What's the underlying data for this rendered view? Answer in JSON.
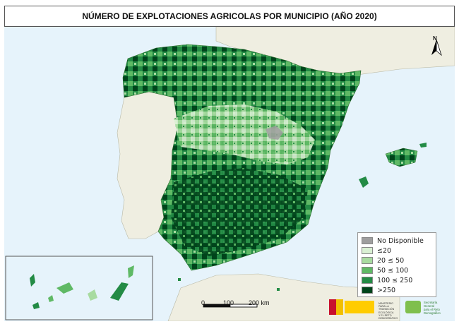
{
  "title": "NÚMERO DE EXPLOTACIONES AGRICOLAS POR MUNICIPIO (AÑO 2020)",
  "legend": {
    "items": [
      {
        "label": "No Disponible",
        "color": "#9e9e9e"
      },
      {
        "label": "≤20",
        "color": "#d9f0d3"
      },
      {
        "label": "20 ≤ 50",
        "color": "#a8dba0"
      },
      {
        "label": "50 ≤ 100",
        "color": "#5fb965"
      },
      {
        "label": "100 ≤ 250",
        "color": "#238b45"
      },
      {
        "label": ">250",
        "color": "#00441b"
      }
    ]
  },
  "scale": {
    "ticks": [
      "0",
      "100",
      "200 km"
    ]
  },
  "north_arrow": {
    "label": "N"
  },
  "logos": {
    "gov_line1": "MINISTERIO",
    "gov_line2": "PARA LA TRANSICIÓN ECOLÓGICA",
    "gov_line3": "Y EL RETO DEMOGRÁFICO",
    "reto_line1": "Secretaría",
    "reto_line2": "General",
    "reto_line3": "para el Reto",
    "reto_line4": "Demográfico"
  },
  "colors": {
    "sea": "#e6f3fb",
    "neighbor_land": "#efeee1",
    "inset_sea": "#e6f3fb"
  }
}
